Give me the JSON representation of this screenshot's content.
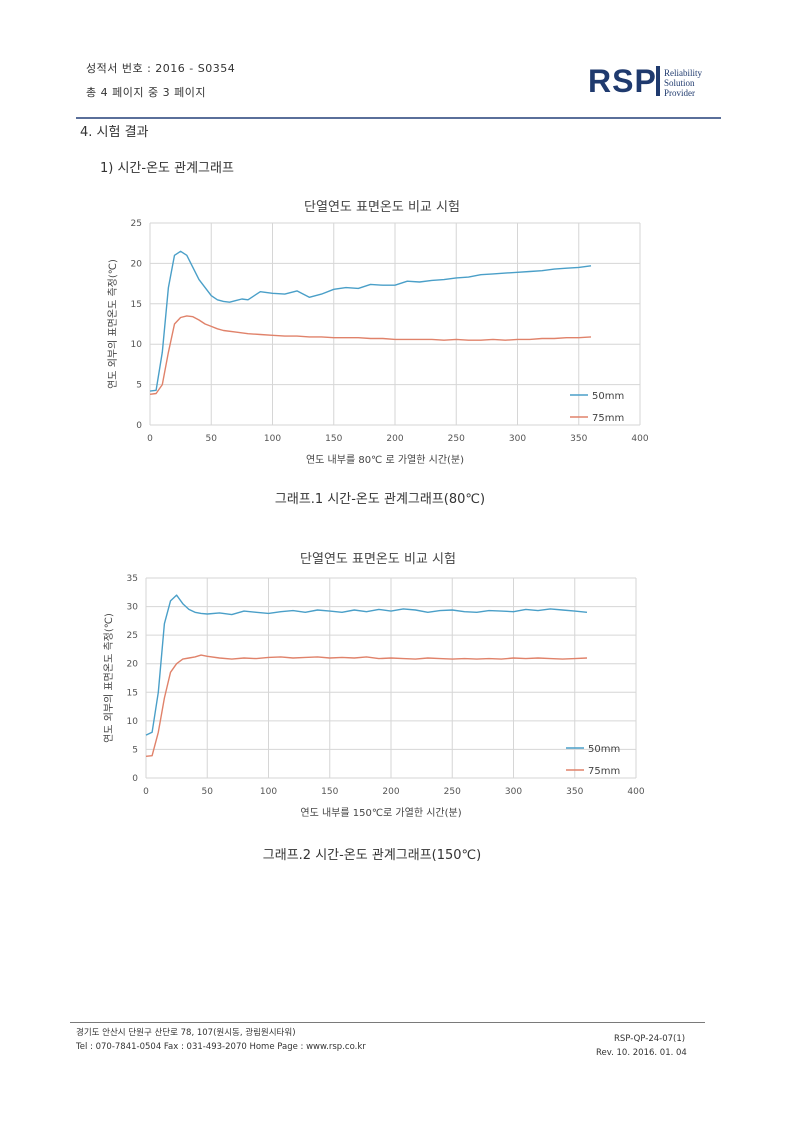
{
  "header": {
    "report_no": "성적서 번호 : 2016 - S0354",
    "page_info": "총 4 페이지 중 3 페이지"
  },
  "logo": {
    "mark": "RSP",
    "line1": "Reliability",
    "line2": "Solution",
    "line3": "Provider"
  },
  "section": {
    "title": "4. 시험 결과",
    "subtitle": "1) 시간-온도 관계그래프"
  },
  "footer": {
    "address": "경기도 안산시 단원구 산단로 78, 107(원시동, 광림원시타워)",
    "contact": "Tel : 070-7841-0504 Fax : 031-493-2070 Home Page : www.rsp.co.kr",
    "doc_code": "RSP-QP-24-07(1)",
    "revision": "Rev. 10. 2016. 01. 04"
  },
  "colors": {
    "series_50mm": "#4a9fc8",
    "series_75mm": "#e0826a",
    "grid": "#d6d6d6",
    "rule": "#5a6f9a"
  },
  "chart_data": [
    {
      "type": "line",
      "title": "단열연도 표면온도 비교 시험",
      "caption": "그래프.1 시간-온도 관계그래프(80℃)",
      "xlabel": "연도 내부를 80℃ 로 가열한 시간(분)",
      "ylabel": "연도 외부의 표면온도 측정(℃)",
      "xlim": [
        0,
        400
      ],
      "ylim": [
        0,
        25
      ],
      "xticks": [
        0,
        50,
        100,
        150,
        200,
        250,
        300,
        350,
        400
      ],
      "yticks": [
        0,
        5,
        10,
        15,
        20,
        25
      ],
      "grid": true,
      "legend_position": "bottom-right",
      "series": [
        {
          "name": "50mm",
          "x": [
            0,
            5,
            10,
            15,
            20,
            25,
            30,
            35,
            40,
            45,
            50,
            55,
            60,
            65,
            70,
            75,
            80,
            90,
            100,
            110,
            120,
            130,
            140,
            150,
            160,
            170,
            180,
            190,
            200,
            210,
            220,
            230,
            240,
            250,
            260,
            270,
            280,
            290,
            300,
            310,
            320,
            330,
            340,
            350,
            360
          ],
          "y": [
            4.2,
            4.3,
            9,
            17,
            21,
            21.5,
            21,
            19.5,
            18,
            17,
            16,
            15.5,
            15.3,
            15.2,
            15.4,
            15.6,
            15.5,
            16.5,
            16.3,
            16.2,
            16.6,
            15.8,
            16.2,
            16.8,
            17.0,
            16.9,
            17.4,
            17.3,
            17.3,
            17.8,
            17.7,
            17.9,
            18.0,
            18.2,
            18.3,
            18.6,
            18.7,
            18.8,
            18.9,
            19.0,
            19.1,
            19.3,
            19.4,
            19.5,
            19.7
          ]
        },
        {
          "name": "75mm",
          "x": [
            0,
            5,
            10,
            15,
            20,
            25,
            30,
            35,
            40,
            45,
            50,
            55,
            60,
            70,
            80,
            90,
            100,
            110,
            120,
            130,
            140,
            150,
            160,
            170,
            180,
            190,
            200,
            210,
            220,
            230,
            240,
            250,
            260,
            270,
            280,
            290,
            300,
            310,
            320,
            330,
            340,
            350,
            360
          ],
          "y": [
            3.8,
            3.9,
            5,
            9,
            12.5,
            13.3,
            13.5,
            13.4,
            13.0,
            12.5,
            12.2,
            11.9,
            11.7,
            11.5,
            11.3,
            11.2,
            11.1,
            11.0,
            11.0,
            10.9,
            10.9,
            10.8,
            10.8,
            10.8,
            10.7,
            10.7,
            10.6,
            10.6,
            10.6,
            10.6,
            10.5,
            10.6,
            10.5,
            10.5,
            10.6,
            10.5,
            10.6,
            10.6,
            10.7,
            10.7,
            10.8,
            10.8,
            10.9
          ]
        }
      ]
    },
    {
      "type": "line",
      "title": "단열연도 표면온도 비교 시험",
      "caption": "그래프.2 시간-온도 관계그래프(150℃)",
      "xlabel": "연도 내부를 150℃로 가열한 시간(분)",
      "ylabel": "연도 외부의 표면온도 측정(℃)",
      "xlim": [
        0,
        400
      ],
      "ylim": [
        0,
        35
      ],
      "xticks": [
        0,
        50,
        100,
        150,
        200,
        250,
        300,
        350,
        400
      ],
      "yticks": [
        0,
        5,
        10,
        15,
        20,
        25,
        30,
        35
      ],
      "grid": true,
      "legend_position": "bottom-right",
      "series": [
        {
          "name": "50mm",
          "x": [
            0,
            5,
            10,
            15,
            20,
            25,
            30,
            35,
            40,
            45,
            50,
            60,
            70,
            80,
            90,
            100,
            110,
            120,
            130,
            140,
            150,
            160,
            170,
            180,
            190,
            200,
            210,
            220,
            230,
            240,
            250,
            260,
            270,
            280,
            290,
            300,
            310,
            320,
            330,
            340,
            350,
            360
          ],
          "y": [
            7.5,
            8,
            15,
            27,
            31,
            32,
            30.5,
            29.5,
            29,
            28.8,
            28.7,
            28.9,
            28.6,
            29.2,
            29.0,
            28.8,
            29.1,
            29.3,
            29.0,
            29.4,
            29.2,
            29.0,
            29.4,
            29.1,
            29.5,
            29.2,
            29.6,
            29.4,
            29.0,
            29.3,
            29.4,
            29.1,
            29.0,
            29.3,
            29.2,
            29.1,
            29.5,
            29.3,
            29.6,
            29.4,
            29.2,
            29.0
          ]
        },
        {
          "name": "75mm",
          "x": [
            0,
            5,
            10,
            15,
            20,
            25,
            30,
            35,
            40,
            45,
            50,
            60,
            70,
            80,
            90,
            100,
            110,
            120,
            130,
            140,
            150,
            160,
            170,
            180,
            190,
            200,
            210,
            220,
            230,
            240,
            250,
            260,
            270,
            280,
            290,
            300,
            310,
            320,
            330,
            340,
            350,
            360
          ],
          "y": [
            3.8,
            3.9,
            8,
            14,
            18.5,
            20,
            20.8,
            21,
            21.2,
            21.5,
            21.3,
            21.0,
            20.8,
            21.0,
            20.9,
            21.1,
            21.2,
            21.0,
            21.1,
            21.2,
            21.0,
            21.1,
            21.0,
            21.2,
            20.9,
            21.0,
            20.9,
            20.8,
            21.0,
            20.9,
            20.8,
            20.9,
            20.8,
            20.9,
            20.8,
            21.0,
            20.9,
            21.0,
            20.9,
            20.8,
            20.9,
            21.0
          ]
        }
      ]
    }
  ]
}
